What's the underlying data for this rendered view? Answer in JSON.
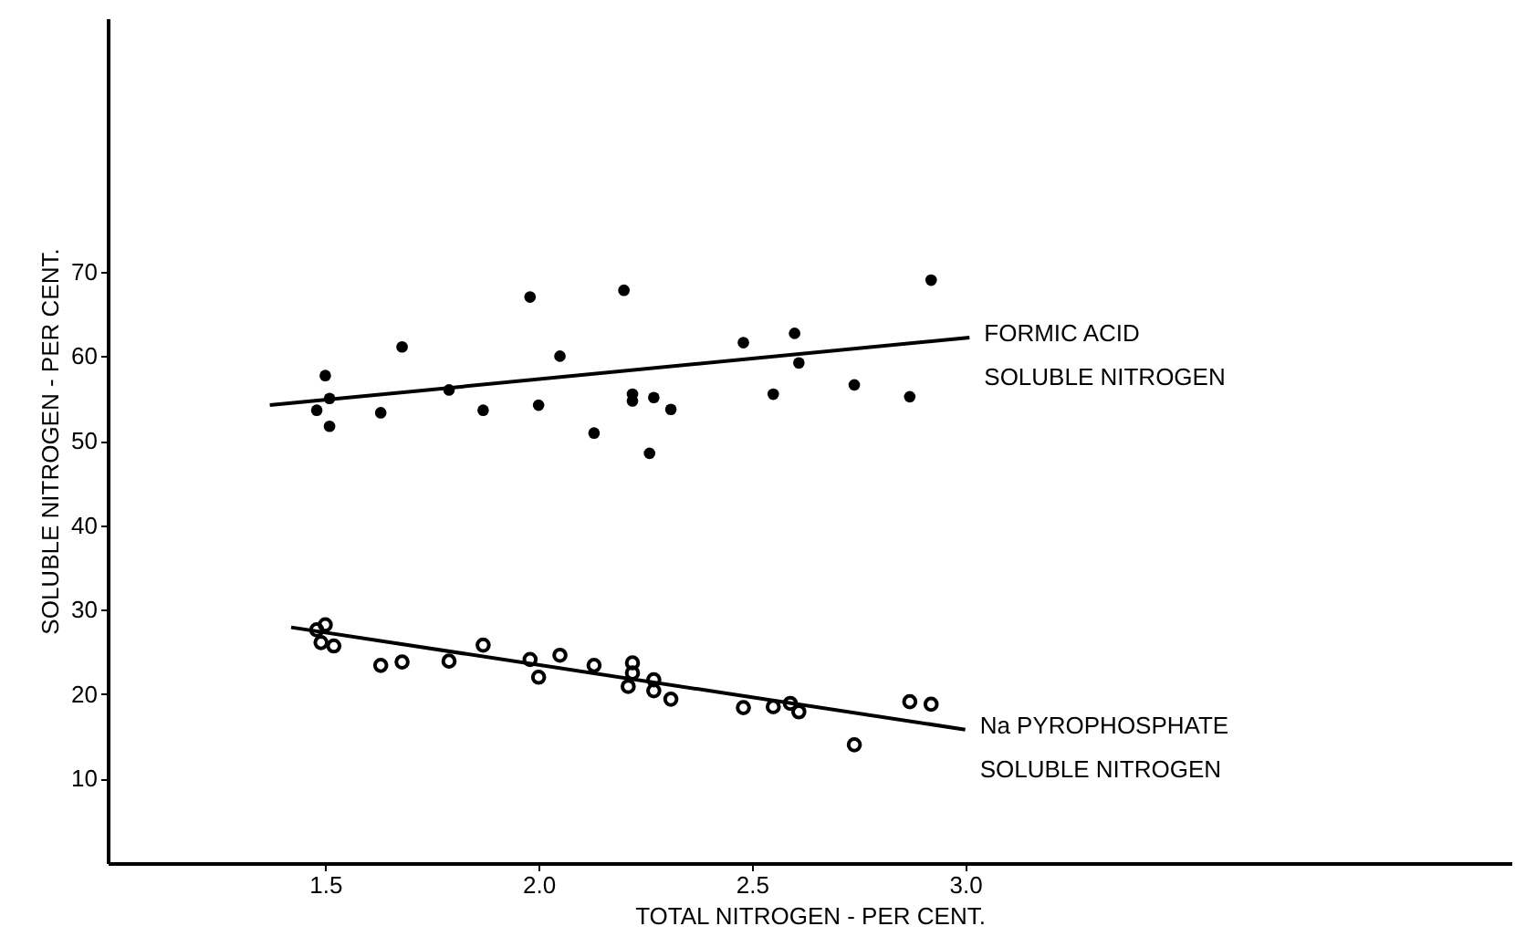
{
  "chart_data": {
    "type": "scatter",
    "xlabel": "TOTAL  NITROGEN - PER CENT.",
    "ylabel": "SOLUBLE  NITROGEN - PER CENT.",
    "xlim": [
      0.99,
      4.28
    ],
    "ylim": [
      0,
      100
    ],
    "xticks": [
      1.5,
      {
        "value": 2,
        "label": "2.0"
      },
      2.5,
      {
        "value": 3,
        "label": "3.0"
      }
    ],
    "yticks": [
      10,
      20,
      30,
      40,
      50,
      60,
      70
    ],
    "grid": false,
    "series": [
      {
        "marker": "circle",
        "color": "#000000",
        "x": [
          1.5,
          1.51,
          1.48,
          1.51,
          1.68,
          1.63,
          1.79,
          1.87,
          1.98,
          2.0,
          2.05,
          2.13,
          2.2,
          2.22,
          2.22,
          2.27,
          2.26,
          2.31,
          2.48,
          2.55,
          2.6,
          2.61,
          2.74,
          2.87,
          2.92
        ],
        "values": [
          57.7,
          55.0,
          53.6,
          51.7,
          61.1,
          53.3,
          56.0,
          53.6,
          67.0,
          54.2,
          60.0,
          50.9,
          67.8,
          55.5,
          54.7,
          55.1,
          48.5,
          53.7,
          61.6,
          55.5,
          62.7,
          59.2,
          56.6,
          55.2,
          69.0
        ]
      },
      {
        "type": "line",
        "name": "FORMIC ACID\nSOLUBLE NITROGEN",
        "color": "#000000",
        "x": [
          1.37,
          3.01
        ],
        "values": [
          54.2,
          62.2
        ]
      },
      {
        "marker": "circle",
        "color": "#000000",
        "x": [
          1.48,
          1.5,
          1.49,
          1.52,
          1.63,
          1.68,
          1.79,
          1.87,
          1.98,
          2.0,
          2.05,
          2.13,
          2.22,
          2.22,
          2.21,
          2.27,
          2.27,
          2.31,
          2.48,
          2.55,
          2.59,
          2.61,
          2.74,
          2.87,
          2.92
        ],
        "values": [
          27.6,
          28.2,
          26.1,
          25.7,
          23.4,
          23.8,
          23.9,
          25.8,
          24.1,
          22.0,
          24.6,
          23.4,
          23.7,
          22.5,
          20.9,
          21.7,
          20.4,
          19.4,
          18.4,
          18.5,
          18.9,
          17.9,
          14.0,
          19.1,
          18.8
        ]
      },
      {
        "type": "line",
        "name": "Na PYROPHOSPHATE\nSOLUBLE NITROGEN",
        "color": "#000000",
        "x": [
          1.42,
          3.0
        ],
        "values": [
          27.9,
          15.8
        ]
      }
    ]
  }
}
